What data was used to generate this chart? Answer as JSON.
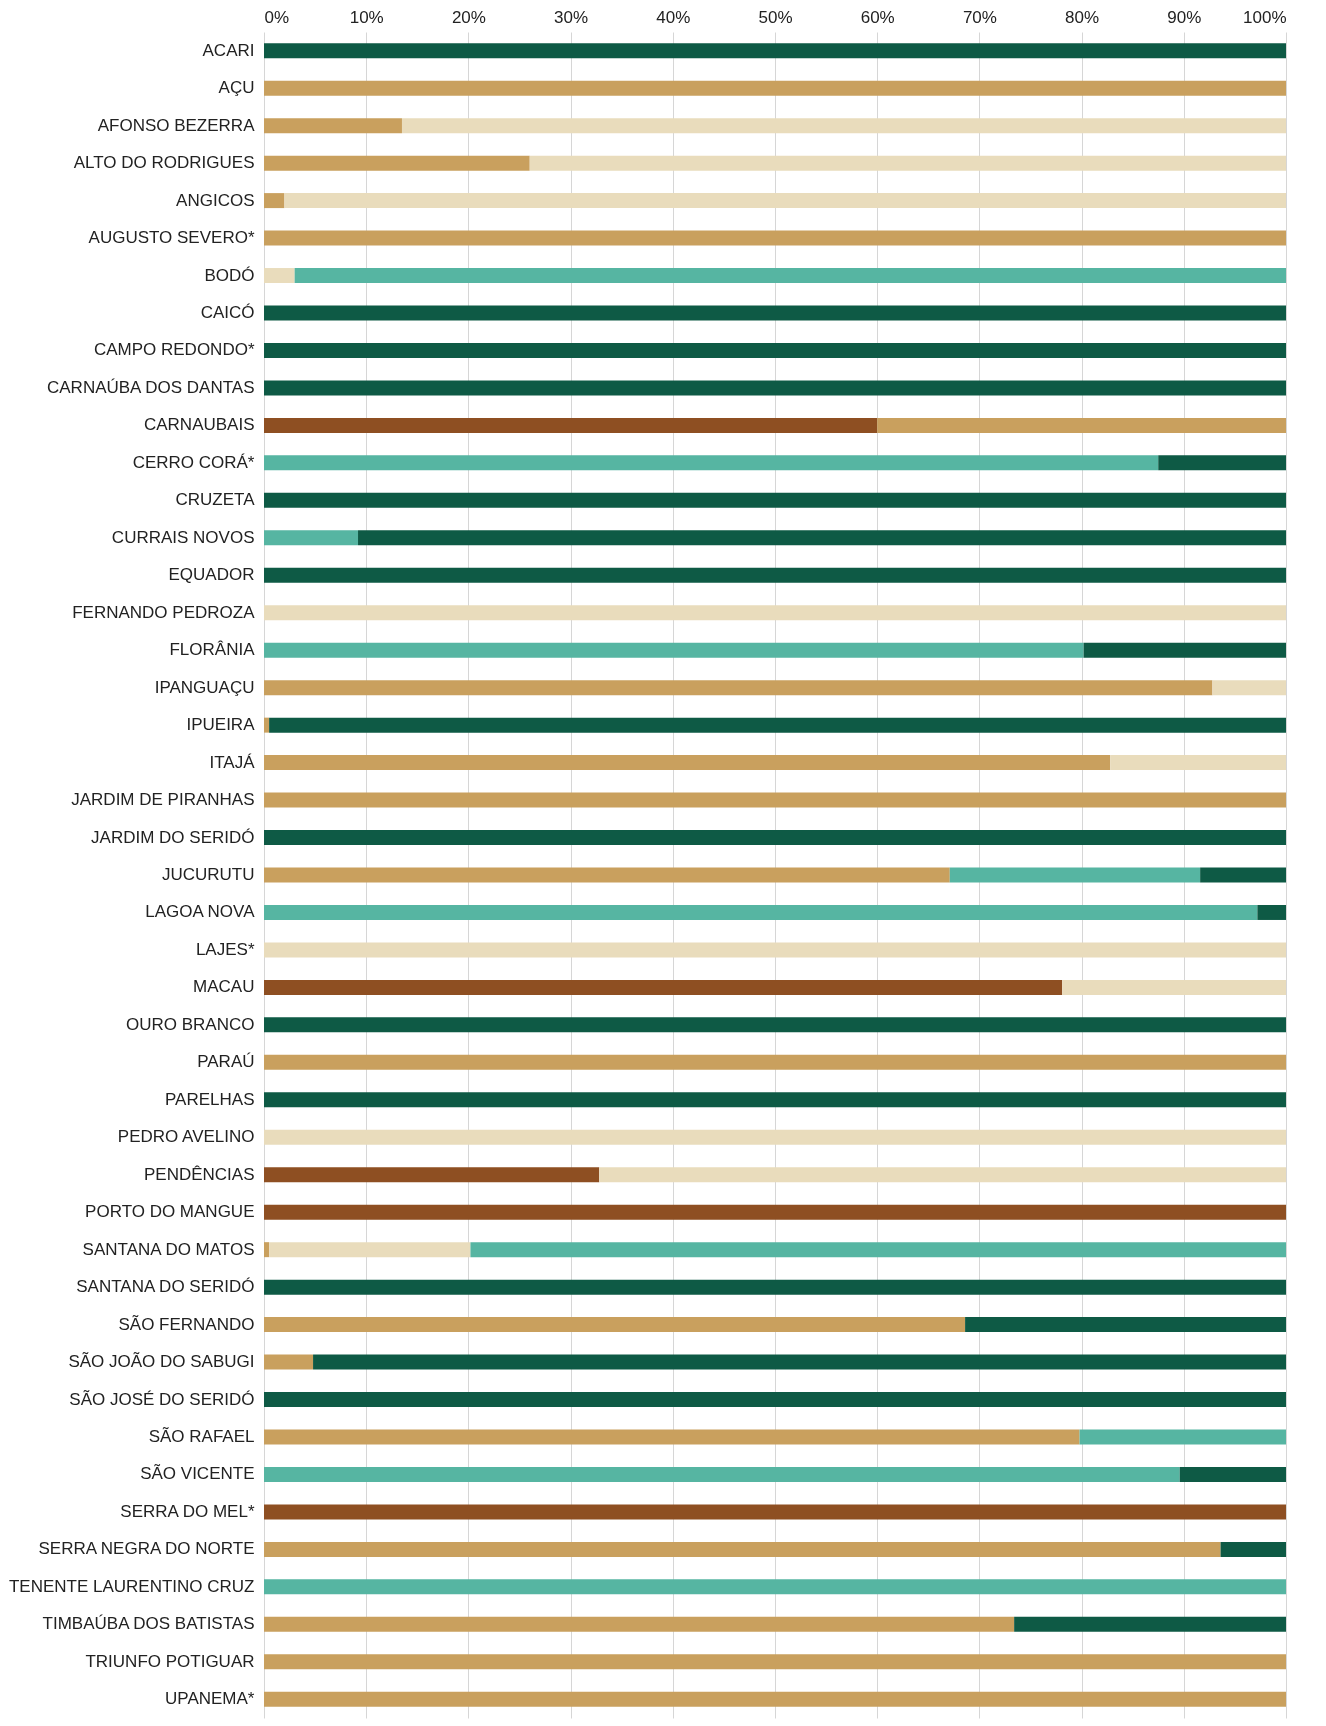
{
  "chart_data": {
    "type": "bar",
    "orientation": "horizontal",
    "stacked": true,
    "categories": [
      "ACARI",
      "AÇU",
      "AFONSO BEZERRA",
      "ALTO DO RODRIGUES",
      "ANGICOS",
      "AUGUSTO SEVERO*",
      "BODÓ",
      "CAICÓ",
      "CAMPO REDONDO*",
      "CARNAÚBA DOS DANTAS",
      "CARNAUBAIS",
      "CERRO CORÁ*",
      "CRUZETA",
      "CURRAIS NOVOS",
      "EQUADOR",
      "FERNANDO PEDROZA",
      "FLORÂNIA",
      "IPANGUAÇU",
      "IPUEIRA",
      "ITAJÁ",
      "JARDIM DE PIRANHAS",
      "JARDIM DO SERIDÓ",
      "JUCURUTU",
      "LAGOA NOVA",
      "LAJES*",
      "MACAU",
      "OURO BRANCO",
      "PARAÚ",
      "PARELHAS",
      "PEDRO AVELINO",
      "PENDÊNCIAS",
      "PORTO DO MANGUE",
      "SANTANA DO MATOS",
      "SANTANA DO SERIDÓ",
      "SÃO FERNANDO",
      "SÃO JOÃO DO SABUGI",
      "SÃO JOSÉ DO SERIDÓ",
      "SÃO RAFAEL",
      "SÃO VICENTE",
      "SERRA DO MEL*",
      "SERRA NEGRA DO NORTE",
      "TENENTE LAURENTINO CRUZ",
      "TIMBAÚBA DOS BATISTAS",
      "TRIUNFO POTIGUAR",
      "UPANEMA*"
    ],
    "series": [
      {
        "color": "#8e4f22",
        "values": [
          null,
          null,
          null,
          null,
          null,
          null,
          null,
          null,
          null,
          null,
          60,
          null,
          null,
          null,
          null,
          null,
          null,
          null,
          null,
          null,
          null,
          null,
          null,
          null,
          null,
          78.1,
          null,
          null,
          null,
          null,
          32.8,
          100,
          null,
          null,
          null,
          null,
          null,
          null,
          null,
          100,
          null,
          null,
          null,
          null,
          null
        ]
      },
      {
        "color": "#c9a05e",
        "values": [
          null,
          100,
          13.5,
          26,
          2,
          100,
          null,
          null,
          null,
          null,
          40,
          null,
          null,
          null,
          null,
          null,
          null,
          92.8,
          0.5,
          82.8,
          100,
          null,
          67.1,
          null,
          null,
          null,
          null,
          100,
          null,
          null,
          null,
          null,
          0.5,
          null,
          68.6,
          4.8,
          null,
          79.8,
          null,
          null,
          93.6,
          null,
          73.4,
          100,
          100
        ]
      },
      {
        "color": "#e9dcbc",
        "values": [
          null,
          null,
          86.5,
          74,
          98,
          null,
          3,
          null,
          null,
          null,
          null,
          null,
          null,
          null,
          null,
          100,
          null,
          7.2,
          null,
          17.2,
          null,
          null,
          null,
          null,
          100,
          21.9,
          null,
          null,
          null,
          100,
          67.2,
          null,
          19.7,
          null,
          null,
          null,
          null,
          null,
          null,
          null,
          null,
          null,
          null,
          null,
          null
        ]
      },
      {
        "color": "#56b5a2",
        "values": [
          null,
          null,
          null,
          null,
          null,
          null,
          97,
          null,
          null,
          null,
          null,
          87.5,
          null,
          9.2,
          null,
          null,
          80.2,
          null,
          null,
          null,
          null,
          null,
          24.5,
          97.2,
          null,
          null,
          null,
          null,
          null,
          null,
          null,
          null,
          79.8,
          null,
          null,
          null,
          null,
          20.2,
          89.6,
          null,
          null,
          100,
          null,
          null,
          null
        ]
      },
      {
        "color": "#0e5a45",
        "values": [
          100,
          null,
          null,
          null,
          null,
          null,
          null,
          100,
          100,
          100,
          null,
          12.5,
          100,
          90.8,
          100,
          null,
          19.8,
          null,
          99.5,
          null,
          null,
          100,
          8.4,
          2.8,
          null,
          null,
          100,
          null,
          100,
          null,
          null,
          null,
          null,
          100,
          31.4,
          95.2,
          100,
          null,
          10.4,
          null,
          6.4,
          null,
          26.6,
          null,
          null
        ]
      }
    ],
    "xlim": [
      0,
      100
    ],
    "xticks": [
      {
        "value": 0,
        "label": "0%"
      },
      {
        "value": 10,
        "label": "10%"
      },
      {
        "value": 20,
        "label": "20%"
      },
      {
        "value": 30,
        "label": "30%"
      },
      {
        "value": 40,
        "label": "40%"
      },
      {
        "value": 50,
        "label": "50%"
      },
      {
        "value": 60,
        "label": "60%"
      },
      {
        "value": 70,
        "label": "70%"
      },
      {
        "value": 80,
        "label": "80%"
      },
      {
        "value": 90,
        "label": "90%"
      },
      {
        "value": 100,
        "label": "100%"
      }
    ],
    "grid": "x",
    "legend": false
  }
}
